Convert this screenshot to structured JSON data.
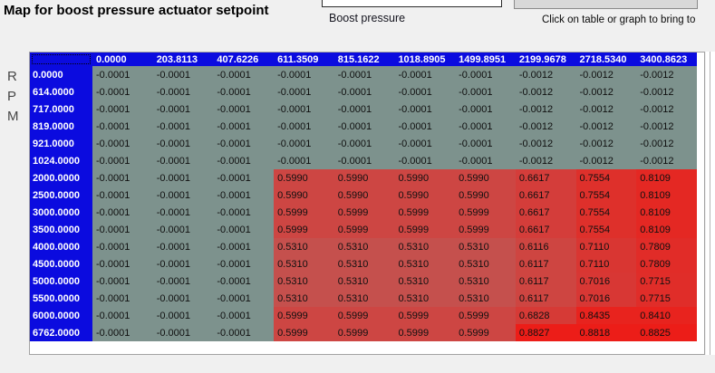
{
  "header": {
    "title": "Map for boost pressure actuator setpoint",
    "x_axis_label": "Boost pressure",
    "y_axis_label": "RPM",
    "hint": "Click on table or graph to bring to"
  },
  "map_table": {
    "col_headers": [
      "0.0000",
      "203.8113",
      "407.6226",
      "611.3509",
      "815.1622",
      "1018.8905",
      "1499.8951",
      "2199.9678",
      "2718.5340",
      "3400.8623"
    ],
    "rows": [
      {
        "rpm": "0.0000",
        "values": [
          "-0.0001",
          "-0.0001",
          "-0.0001",
          "-0.0001",
          "-0.0001",
          "-0.0001",
          "-0.0001",
          "-0.0012",
          "-0.0012",
          "-0.0012"
        ]
      },
      {
        "rpm": "614.0000",
        "values": [
          "-0.0001",
          "-0.0001",
          "-0.0001",
          "-0.0001",
          "-0.0001",
          "-0.0001",
          "-0.0001",
          "-0.0012",
          "-0.0012",
          "-0.0012"
        ]
      },
      {
        "rpm": "717.0000",
        "values": [
          "-0.0001",
          "-0.0001",
          "-0.0001",
          "-0.0001",
          "-0.0001",
          "-0.0001",
          "-0.0001",
          "-0.0012",
          "-0.0012",
          "-0.0012"
        ]
      },
      {
        "rpm": "819.0000",
        "values": [
          "-0.0001",
          "-0.0001",
          "-0.0001",
          "-0.0001",
          "-0.0001",
          "-0.0001",
          "-0.0001",
          "-0.0012",
          "-0.0012",
          "-0.0012"
        ]
      },
      {
        "rpm": "921.0000",
        "values": [
          "-0.0001",
          "-0.0001",
          "-0.0001",
          "-0.0001",
          "-0.0001",
          "-0.0001",
          "-0.0001",
          "-0.0012",
          "-0.0012",
          "-0.0012"
        ]
      },
      {
        "rpm": "1024.0000",
        "values": [
          "-0.0001",
          "-0.0001",
          "-0.0001",
          "-0.0001",
          "-0.0001",
          "-0.0001",
          "-0.0001",
          "-0.0012",
          "-0.0012",
          "-0.0012"
        ]
      },
      {
        "rpm": "2000.0000",
        "values": [
          "-0.0001",
          "-0.0001",
          "-0.0001",
          "0.5990",
          "0.5990",
          "0.5990",
          "0.5990",
          "0.6617",
          "0.7554",
          "0.8109"
        ]
      },
      {
        "rpm": "2500.0000",
        "values": [
          "-0.0001",
          "-0.0001",
          "-0.0001",
          "0.5990",
          "0.5990",
          "0.5990",
          "0.5990",
          "0.6617",
          "0.7554",
          "0.8109"
        ]
      },
      {
        "rpm": "3000.0000",
        "values": [
          "-0.0001",
          "-0.0001",
          "-0.0001",
          "0.5999",
          "0.5999",
          "0.5999",
          "0.5999",
          "0.6617",
          "0.7554",
          "0.8109"
        ]
      },
      {
        "rpm": "3500.0000",
        "values": [
          "-0.0001",
          "-0.0001",
          "-0.0001",
          "0.5999",
          "0.5999",
          "0.5999",
          "0.5999",
          "0.6617",
          "0.7554",
          "0.8109"
        ]
      },
      {
        "rpm": "4000.0000",
        "values": [
          "-0.0001",
          "-0.0001",
          "-0.0001",
          "0.5310",
          "0.5310",
          "0.5310",
          "0.5310",
          "0.6116",
          "0.7110",
          "0.7809"
        ]
      },
      {
        "rpm": "4500.0000",
        "values": [
          "-0.0001",
          "-0.0001",
          "-0.0001",
          "0.5310",
          "0.5310",
          "0.5310",
          "0.5310",
          "0.6117",
          "0.7110",
          "0.7809"
        ]
      },
      {
        "rpm": "5000.0000",
        "values": [
          "-0.0001",
          "-0.0001",
          "-0.0001",
          "0.5310",
          "0.5310",
          "0.5310",
          "0.5310",
          "0.6117",
          "0.7016",
          "0.7715"
        ]
      },
      {
        "rpm": "5500.0000",
        "values": [
          "-0.0001",
          "-0.0001",
          "-0.0001",
          "0.5310",
          "0.5310",
          "0.5310",
          "0.5310",
          "0.6117",
          "0.7016",
          "0.7715"
        ]
      },
      {
        "rpm": "6000.0000",
        "values": [
          "-0.0001",
          "-0.0001",
          "-0.0001",
          "0.5999",
          "0.5999",
          "0.5999",
          "0.5999",
          "0.6828",
          "0.8435",
          "0.8410"
        ]
      },
      {
        "rpm": "6762.0000",
        "values": [
          "-0.0001",
          "-0.0001",
          "-0.0001",
          "0.5999",
          "0.5999",
          "0.5999",
          "0.5999",
          "0.8827",
          "0.8818",
          "0.8825"
        ]
      }
    ]
  },
  "colors": {
    "header_blue": "#0b0bdf",
    "negative_cell": "#7d928d",
    "red_low": "#c4524f",
    "red_high": "#ed1c17",
    "panel_bg": "#ffffff",
    "page_bg": "#f0f0f0"
  }
}
